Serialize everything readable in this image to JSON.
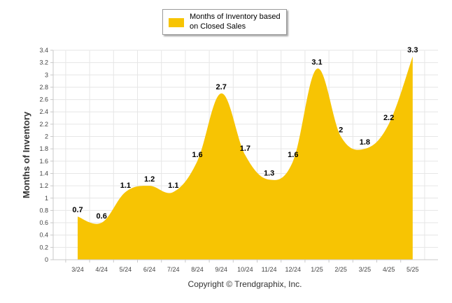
{
  "chart_data": {
    "type": "area",
    "categories": [
      "3/24",
      "4/24",
      "5/24",
      "6/24",
      "7/24",
      "8/24",
      "9/24",
      "10/24",
      "11/24",
      "12/24",
      "1/25",
      "2/25",
      "3/25",
      "4/25",
      "5/25"
    ],
    "series": [
      {
        "name": "Months of Inventory based on Closed Sales",
        "values": [
          0.7,
          0.6,
          1.1,
          1.2,
          1.1,
          1.6,
          2.7,
          1.7,
          1.3,
          1.6,
          3.1,
          2,
          1.8,
          2.2,
          3.3
        ],
        "data_labels": [
          "0.7",
          "0.6",
          "1.1",
          "1.2",
          "1.1",
          "1.6",
          "2.7",
          "1.7",
          "1.3",
          "1.6",
          "3.1",
          "2",
          "1.8",
          "2.2",
          "3.3"
        ]
      }
    ],
    "ylabel": "Months of Inventory",
    "ylim": [
      0,
      3.4
    ],
    "yticks": [
      "0",
      "0.2",
      "0.4",
      "0.6",
      "0.8",
      "1",
      "1.2",
      "1.4",
      "1.6",
      "1.8",
      "2",
      "2.2",
      "2.4",
      "2.6",
      "2.8",
      "3",
      "3.2",
      "3.4"
    ],
    "grid": true,
    "legend_position": "top-center",
    "fill_color": "#f7c403",
    "grid_color": "#e6e6e6"
  },
  "legend": {
    "label": "Months of Inventory based\non Closed Sales"
  },
  "footer": {
    "copyright": "Copyright © Trendgraphix, Inc."
  }
}
